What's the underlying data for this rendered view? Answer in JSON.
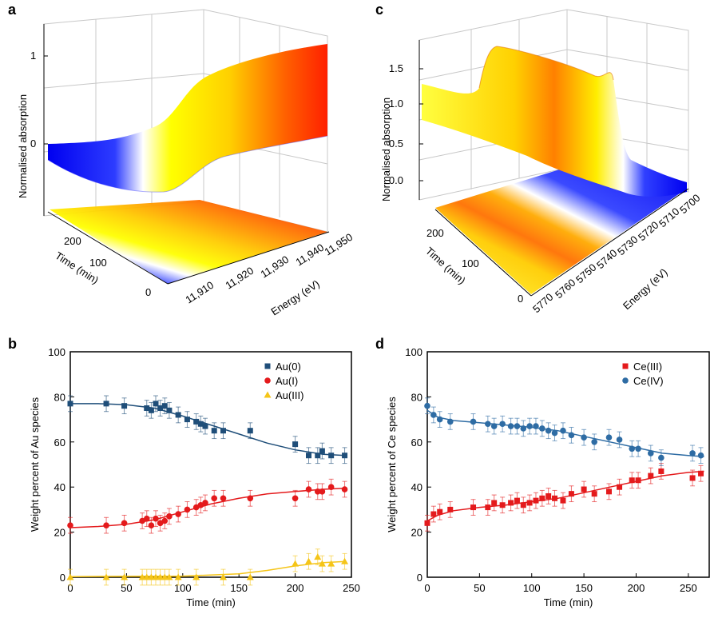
{
  "panels": {
    "a": "a",
    "b": "b",
    "c": "c",
    "d": "d"
  },
  "chart_data": [
    {
      "id": "a",
      "type": "surface3d",
      "zlabel": "Normalised absorption",
      "ylabel": "Time (min)",
      "xlabel": "Energy (eV)",
      "zticks": [
        "0",
        "1"
      ],
      "yticks": [
        "0",
        "100",
        "200"
      ],
      "xticks": [
        "11,910",
        "11,920",
        "11,930",
        "11,940",
        "11,950"
      ],
      "colormap": [
        "#0000ff",
        "#ffffff",
        "#ffff00",
        "#ff0000"
      ]
    },
    {
      "id": "c",
      "type": "surface3d",
      "zlabel": "Normalised absorption",
      "ylabel": "Time (min)",
      "xlabel": "Energy (eV)",
      "zticks": [
        "0.0",
        "0.5",
        "1.0",
        "1.5"
      ],
      "yticks": [
        "0",
        "100",
        "200"
      ],
      "xticks": [
        "5770",
        "5760",
        "5750",
        "5740",
        "5730",
        "5720",
        "5710",
        "5700"
      ],
      "colormap": [
        "#0000ff",
        "#ffffff",
        "#ffff00",
        "#ff0000"
      ]
    },
    {
      "id": "b",
      "type": "scatter",
      "xlabel": "Time (min)",
      "ylabel": "Weight percent of Au species",
      "xlim": [
        0,
        250
      ],
      "ylim": [
        0,
        100
      ],
      "xticks": [
        0,
        50,
        100,
        150,
        200,
        250
      ],
      "yticks": [
        0,
        20,
        40,
        60,
        80,
        100
      ],
      "legend_position": "top-right",
      "series": [
        {
          "name": "Au(0)",
          "color": "#1f4e79",
          "marker": "square",
          "x": [
            0,
            32,
            48,
            68,
            72,
            76,
            80,
            84,
            88,
            96,
            104,
            112,
            116,
            120,
            128,
            136,
            160,
            200,
            212,
            220,
            224,
            232,
            244
          ],
          "y": [
            77,
            77,
            76,
            75,
            74,
            77,
            75,
            76,
            74,
            72,
            70,
            69,
            68,
            67,
            65,
            65,
            65,
            59,
            54,
            54,
            56,
            54,
            54
          ]
        },
        {
          "name": "Au(I)",
          "color": "#e41a1c",
          "marker": "circle",
          "x": [
            0,
            32,
            48,
            64,
            68,
            72,
            76,
            80,
            84,
            88,
            96,
            104,
            112,
            116,
            120,
            128,
            136,
            160,
            200,
            212,
            220,
            224,
            232,
            244
          ],
          "y": [
            23,
            23,
            24,
            25,
            26,
            23,
            26,
            24,
            25,
            27,
            28,
            30,
            31,
            32,
            33,
            35,
            35,
            35,
            35,
            39,
            38,
            38,
            40,
            39
          ]
        },
        {
          "name": "Au(III)",
          "color": "#f5c518",
          "marker": "triangle",
          "x": [
            0,
            32,
            48,
            64,
            68,
            72,
            76,
            80,
            84,
            88,
            96,
            112,
            136,
            160,
            200,
            212,
            220,
            224,
            232,
            244
          ],
          "y": [
            0,
            0,
            0,
            0,
            0,
            0,
            0,
            0,
            0,
            0,
            0,
            0,
            0,
            0,
            6,
            7,
            9,
            6,
            6,
            7
          ]
        }
      ],
      "fits": [
        {
          "name": "Au(0)",
          "color": "#1f4e79",
          "x": [
            0,
            25,
            50,
            75,
            100,
            125,
            150,
            175,
            200,
            225,
            245
          ],
          "y": [
            77,
            77,
            76.5,
            75,
            71.5,
            67.5,
            63.5,
            59.5,
            56.5,
            54.5,
            54
          ]
        },
        {
          "name": "Au(I)",
          "color": "#e41a1c",
          "x": [
            0,
            25,
            50,
            75,
            100,
            125,
            150,
            175,
            200,
            225,
            245
          ],
          "y": [
            22,
            22.5,
            23.5,
            25.5,
            29,
            32.5,
            35,
            37,
            38,
            39,
            39.5
          ]
        },
        {
          "name": "Au(III)",
          "color": "#f5c518",
          "x": [
            0,
            50,
            100,
            150,
            175,
            200,
            225,
            245
          ],
          "y": [
            0.3,
            0.4,
            0.5,
            1.5,
            3,
            5,
            6.5,
            7
          ]
        }
      ]
    },
    {
      "id": "d",
      "type": "scatter",
      "xlabel": "Time (min)",
      "ylabel": "Weight percent of Ce species",
      "xlim": [
        0,
        270
      ],
      "ylim": [
        0,
        100
      ],
      "xticks": [
        0,
        50,
        100,
        150,
        200,
        250
      ],
      "yticks": [
        0,
        20,
        40,
        60,
        80,
        100
      ],
      "legend_position": "top-right",
      "series": [
        {
          "name": "Ce(III)",
          "color": "#e41a1c",
          "marker": "square",
          "x": [
            0,
            6,
            12,
            22,
            44,
            58,
            64,
            72,
            80,
            86,
            92,
            98,
            104,
            110,
            116,
            122,
            130,
            138,
            150,
            160,
            174,
            184,
            196,
            202,
            214,
            224,
            254,
            262
          ],
          "y": [
            24,
            28,
            29,
            30,
            31,
            31,
            33,
            32,
            33,
            34,
            32,
            33,
            34,
            35,
            36,
            35,
            34,
            37,
            39,
            37,
            38,
            40,
            43,
            43,
            45,
            47,
            44,
            46
          ]
        },
        {
          "name": "Ce(IV)",
          "color": "#2e6ca4",
          "marker": "circle",
          "x": [
            0,
            6,
            12,
            22,
            44,
            58,
            64,
            72,
            80,
            86,
            92,
            98,
            104,
            110,
            116,
            122,
            130,
            138,
            150,
            160,
            174,
            184,
            196,
            202,
            214,
            224,
            254,
            262
          ],
          "y": [
            76,
            72,
            70,
            69,
            69,
            68,
            67,
            68,
            67,
            67,
            66,
            67,
            67,
            66,
            65,
            64,
            65,
            63,
            62,
            60,
            62,
            61,
            57,
            57,
            55,
            53,
            55,
            54
          ]
        }
      ],
      "fits": [
        {
          "name": "Ce(III)",
          "color": "#e41a1c",
          "x": [
            0,
            10,
            25,
            50,
            75,
            100,
            125,
            150,
            175,
            200,
            225,
            250,
            265
          ],
          "y": [
            25,
            27.5,
            29.5,
            31,
            32,
            33.5,
            35,
            37.5,
            40,
            42.5,
            45,
            46.5,
            47
          ]
        },
        {
          "name": "Ce(IV)",
          "color": "#2e6ca4",
          "x": [
            0,
            10,
            25,
            50,
            75,
            100,
            125,
            150,
            175,
            200,
            225,
            250,
            265
          ],
          "y": [
            74,
            71,
            69.5,
            68.5,
            67.5,
            66.5,
            65,
            62.5,
            60,
            57.5,
            55,
            54,
            53.5
          ]
        }
      ]
    }
  ]
}
